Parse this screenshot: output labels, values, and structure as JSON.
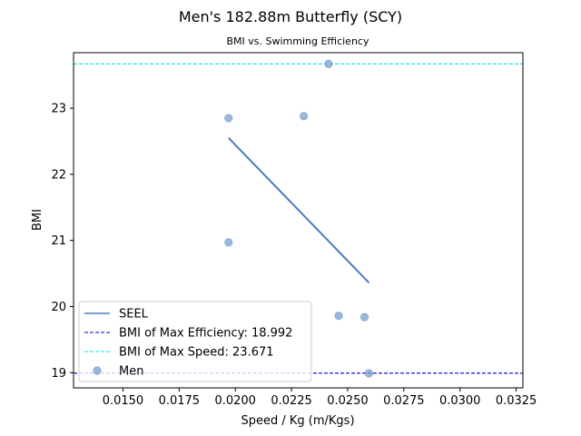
{
  "chart_data": {
    "type": "scatter",
    "title": "Men's 182.88m Butterfly (SCY)",
    "subtitle": "BMI vs. Swimming Efficiency",
    "xlabel": "Speed / Kg (m/Kgs)",
    "ylabel": "BMI",
    "xlim": [
      0.0128,
      0.0328
    ],
    "ylim": [
      18.77,
      23.84
    ],
    "x_ticks": [
      0.015,
      0.0175,
      0.02,
      0.0225,
      0.025,
      0.0275,
      0.03,
      0.0325
    ],
    "x_tick_labels": [
      "0.0150",
      "0.0175",
      "0.0200",
      "0.0225",
      "0.0250",
      "0.0275",
      "0.0300",
      "0.0325"
    ],
    "y_ticks": [
      19,
      20,
      21,
      22,
      23
    ],
    "y_tick_labels": [
      "19",
      "20",
      "21",
      "22",
      "23"
    ],
    "grid": false,
    "legend_position": "lower-left",
    "series": [
      {
        "name": "Men",
        "kind": "scatter",
        "color": "#7aa0d0",
        "points": [
          {
            "x": 0.0197,
            "y": 22.85
          },
          {
            "x": 0.0197,
            "y": 20.97
          },
          {
            "x": 0.02305,
            "y": 22.88
          },
          {
            "x": 0.02415,
            "y": 23.67
          },
          {
            "x": 0.0246,
            "y": 19.86
          },
          {
            "x": 0.02575,
            "y": 19.84
          },
          {
            "x": 0.02595,
            "y": 18.99
          }
        ]
      },
      {
        "name": "SEEL",
        "kind": "line",
        "color": "#4a7bc0",
        "points": [
          {
            "x": 0.0197,
            "y": 22.55
          },
          {
            "x": 0.02595,
            "y": 20.36
          }
        ]
      }
    ],
    "reference_lines": [
      {
        "name": "BMI of Max Efficiency: 18.992",
        "orientation": "horizontal",
        "value": 18.992,
        "color": "#0000cc",
        "style": "dashed"
      },
      {
        "name": "BMI of Max Speed: 23.671",
        "orientation": "horizontal",
        "value": 23.671,
        "color": "#00e5e5",
        "style": "dashed"
      }
    ],
    "legend": [
      {
        "label": "SEEL",
        "marker": "line",
        "color": "#4a7bc0"
      },
      {
        "label": "BMI of Max Efficiency: 18.992",
        "marker": "dashed",
        "color": "#0000cc"
      },
      {
        "label": "BMI of Max Speed: 23.671",
        "marker": "dashed",
        "color": "#00e5e5"
      },
      {
        "label": "Men",
        "marker": "circle",
        "color": "#7aa0d0"
      }
    ]
  }
}
